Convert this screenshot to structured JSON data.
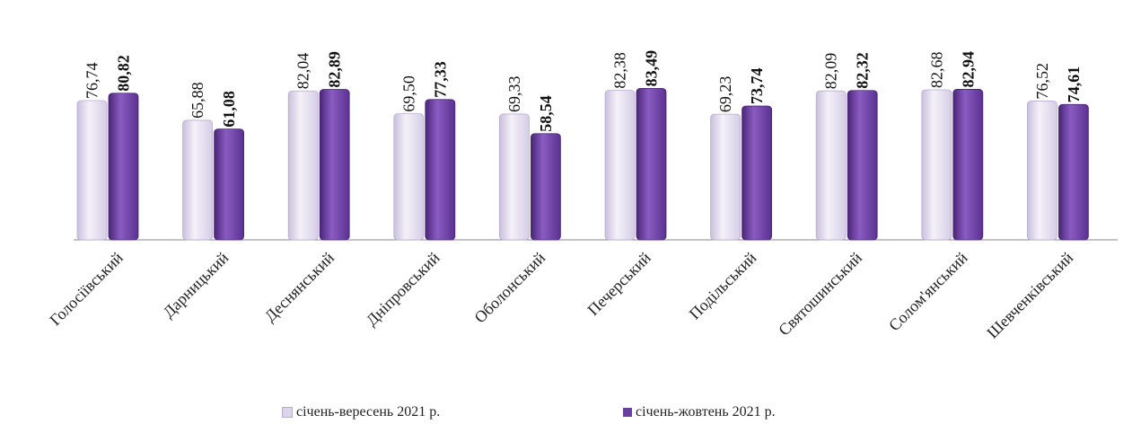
{
  "chart_data": {
    "type": "bar",
    "categories": [
      "Голосіївський",
      "Дарницький",
      "Деснянський",
      "Дніпровський",
      "Оболонський",
      "Печерський",
      "Подільський",
      "Святошинський",
      "Солом'янський",
      "Шевченківський"
    ],
    "series": [
      {
        "name": "січень-вересень 2021 р.",
        "values": [
          76.74,
          65.88,
          82.04,
          69.5,
          69.33,
          82.38,
          69.23,
          82.09,
          82.68,
          76.52
        ],
        "labels": [
          "76,74",
          "65,88",
          "82,04",
          "69,50",
          "69,33",
          "82,38",
          "69,23",
          "82,09",
          "82,68",
          "76,52"
        ],
        "color": "#dcd4ea"
      },
      {
        "name": "січень-жовтень 2021 р.",
        "values": [
          80.82,
          61.08,
          82.89,
          77.33,
          58.54,
          83.49,
          73.74,
          82.32,
          82.94,
          74.61
        ],
        "labels": [
          "80,82",
          "61,08",
          "82,89",
          "77,33",
          "58,54",
          "83,49",
          "73,74",
          "82,32",
          "82,94",
          "74,61"
        ],
        "color": "#6b3fa0"
      }
    ],
    "ylim": [
      0,
      100
    ],
    "grid": false,
    "legend_position": "bottom"
  }
}
